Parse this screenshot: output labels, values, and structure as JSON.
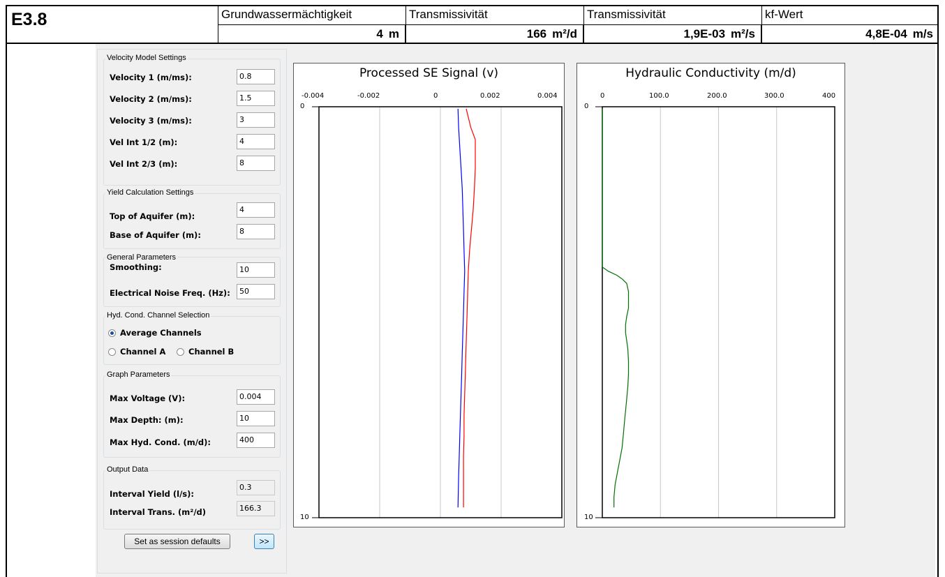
{
  "header": {
    "code": "E3.8",
    "columns": [
      {
        "label": "Grundwassermächtigkeit",
        "value": "4",
        "unit": "m"
      },
      {
        "label": "Transmissivität",
        "value": "166",
        "unit": "m²/d"
      },
      {
        "label": "Transmissivität",
        "value": "1,9E-03",
        "unit": "m²/s"
      },
      {
        "label": "kf-Wert",
        "value": "4,8E-04",
        "unit": "m/s"
      }
    ]
  },
  "velocity_model": {
    "title": "Velocity Model Settings",
    "fields": [
      {
        "label": "Velocity 1 (m/ms):",
        "value": "0.8"
      },
      {
        "label": "Velocity 2 (m/ms):",
        "value": "1.5"
      },
      {
        "label": "Velocity 3 (m/ms):",
        "value": "3"
      },
      {
        "label": "Vel Int 1/2 (m):",
        "value": "4"
      },
      {
        "label": "Vel Int 2/3 (m):",
        "value": "8"
      }
    ]
  },
  "yield_calc": {
    "title": "Yield Calculation Settings",
    "fields": [
      {
        "label": "Top of Aquifer (m):",
        "value": "4"
      },
      {
        "label": "Base of Aquifer (m):",
        "value": "8"
      }
    ]
  },
  "general_params": {
    "title": "General Parameters",
    "fields": [
      {
        "label": "Smoothing:",
        "value": "10"
      },
      {
        "label": "Electrical Noise Freq. (Hz):",
        "value": "50"
      }
    ]
  },
  "channel_selection": {
    "title": "Hyd. Cond. Channel Selection",
    "options": [
      {
        "label": "Average Channels",
        "selected": true
      },
      {
        "label": "Channel A",
        "selected": false
      },
      {
        "label": "Channel B",
        "selected": false
      }
    ]
  },
  "graph_params": {
    "title": "Graph Parameters",
    "fields": [
      {
        "label": "Max Voltage (V):",
        "value": "0.004"
      },
      {
        "label": "Max Depth: (m):",
        "value": "10"
      },
      {
        "label": "Max Hyd. Cond.  (m/d):",
        "value": "400"
      }
    ]
  },
  "output_data": {
    "title": "Output Data",
    "fields": [
      {
        "label": "Interval Yield (l/s):",
        "value": "0.3"
      },
      {
        "label": "Interval Trans. (m²/d)",
        "value": "166.3"
      }
    ]
  },
  "buttons": {
    "defaults": "Set as session defaults",
    "next": ">>"
  },
  "chart_data": [
    {
      "type": "line",
      "title": "Processed SE Signal (v)",
      "x_ticks": [
        "-0.004",
        "-0.002",
        "0",
        "0.002",
        "0.004"
      ],
      "y_ticks": [
        "0",
        "10"
      ],
      "xlim": [
        -0.004,
        0.004
      ],
      "ylim": [
        10,
        0
      ],
      "x_axis_position": "top",
      "grid": "vertical",
      "series": [
        {
          "color": "#0000ff",
          "points": [
            [
              0.00058,
              0.05
            ],
            [
              0.0006,
              0.5
            ],
            [
              0.00064,
              1.0
            ],
            [
              0.00068,
              1.5
            ],
            [
              0.00072,
              2.0
            ],
            [
              0.00074,
              2.5
            ],
            [
              0.00076,
              3.0
            ],
            [
              0.00078,
              3.5
            ],
            [
              0.0008,
              4.0
            ],
            [
              0.00078,
              4.5
            ],
            [
              0.00076,
              5.0
            ],
            [
              0.00074,
              5.5
            ],
            [
              0.00072,
              6.0
            ],
            [
              0.0007,
              6.5
            ],
            [
              0.00068,
              7.0
            ],
            [
              0.00066,
              7.5
            ],
            [
              0.00064,
              8.0
            ],
            [
              0.00062,
              8.5
            ],
            [
              0.0006,
              9.0
            ],
            [
              0.00058,
              9.75
            ]
          ]
        },
        {
          "color": "#ff0000",
          "points": [
            [
              0.00085,
              0.05
            ],
            [
              0.001,
              0.5
            ],
            [
              0.00115,
              0.8
            ],
            [
              0.00115,
              1.5
            ],
            [
              0.00112,
              2.0
            ],
            [
              0.00108,
              2.5
            ],
            [
              0.00102,
              3.0
            ],
            [
              0.00096,
              3.5
            ],
            [
              0.00092,
              4.0
            ],
            [
              0.0009,
              4.5
            ],
            [
              0.00088,
              5.0
            ],
            [
              0.00086,
              5.5
            ],
            [
              0.00084,
              6.0
            ],
            [
              0.00082,
              6.5
            ],
            [
              0.0008,
              7.0
            ],
            [
              0.00078,
              7.5
            ],
            [
              0.00078,
              8.0
            ],
            [
              0.00076,
              8.5
            ],
            [
              0.00076,
              9.0
            ],
            [
              0.00076,
              9.75
            ]
          ]
        }
      ]
    },
    {
      "type": "line",
      "title": "Hydraulic Conductivity (m/d)",
      "x_ticks": [
        "0",
        "100.0",
        "200.0",
        "300.0",
        "400"
      ],
      "y_ticks": [
        "0",
        "10"
      ],
      "xlim": [
        0,
        400
      ],
      "ylim": [
        10,
        0
      ],
      "x_axis_position": "top",
      "grid": "vertical",
      "series": [
        {
          "color": "#007000",
          "points": [
            [
              0,
              0.05
            ],
            [
              0,
              2.0
            ],
            [
              0,
              3.5
            ],
            [
              0,
              3.9
            ],
            [
              10,
              4.0
            ],
            [
              25,
              4.1
            ],
            [
              35,
              4.2
            ],
            [
              42,
              4.3
            ],
            [
              45,
              4.5
            ],
            [
              45,
              4.9
            ],
            [
              42,
              5.1
            ],
            [
              40,
              5.3
            ],
            [
              40,
              5.5
            ],
            [
              42,
              5.7
            ],
            [
              44,
              5.9
            ],
            [
              45,
              6.2
            ],
            [
              45,
              6.5
            ],
            [
              44,
              6.8
            ],
            [
              42,
              7.1
            ],
            [
              40,
              7.4
            ],
            [
              38,
              7.7
            ],
            [
              36,
              8.0
            ],
            [
              34,
              8.3
            ],
            [
              30,
              8.6
            ],
            [
              26,
              8.9
            ],
            [
              22,
              9.2
            ],
            [
              20,
              9.5
            ],
            [
              20,
              9.75
            ]
          ]
        }
      ]
    }
  ]
}
